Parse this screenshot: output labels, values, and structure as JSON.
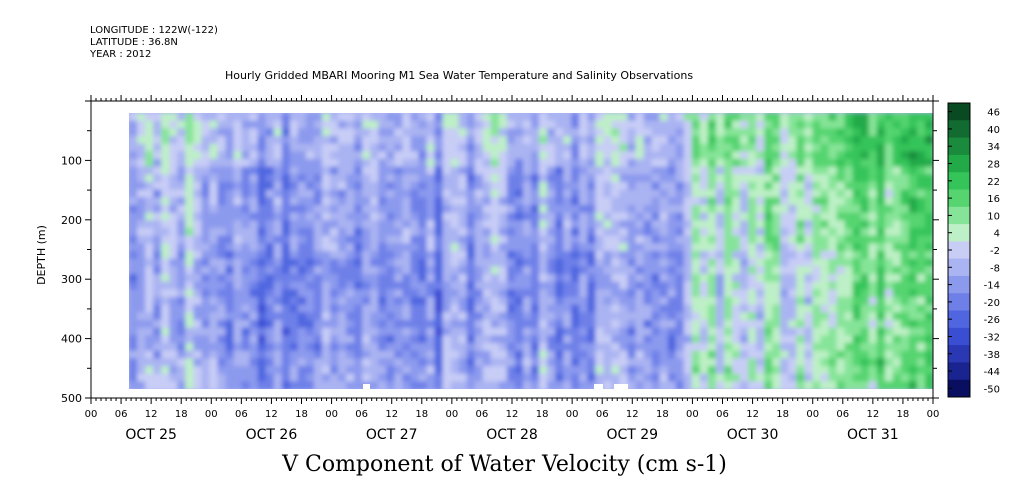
{
  "header": {
    "longitude": "LONGITUDE : 122W(-122)",
    "latitude": "LATITUDE : 36.8N",
    "year": "YEAR : 2012"
  },
  "chart_data": {
    "type": "heatmap",
    "title": "Hourly Gridded MBARI Mooring M1 Sea Water Temperature and Salinity Observations",
    "footer_label": "V Component of Water Velocity (cm s-1)",
    "ylabel": "DEPTH (m)",
    "ylim": [
      500,
      0
    ],
    "y_ticks": [
      "100",
      "200",
      "300",
      "400",
      "500"
    ],
    "x_hour_labels": [
      "00",
      "06",
      "12",
      "18",
      "00",
      "06",
      "12",
      "18",
      "00",
      "06",
      "12",
      "18",
      "00",
      "06",
      "12",
      "18",
      "00",
      "06",
      "12",
      "18",
      "00",
      "06",
      "12",
      "18",
      "00",
      "06",
      "12",
      "18",
      "00"
    ],
    "x_date_labels": [
      "OCT 25",
      "OCT 26",
      "OCT 27",
      "OCT 28",
      "OCT 29",
      "OCT 30",
      "OCT 31"
    ],
    "x_start": "OCT 25 00",
    "x_end": "OCT 32 00",
    "data_start": "OCT 25 06",
    "colorbar": {
      "labels": [
        "46",
        "40",
        "34",
        "28",
        "22",
        "16",
        "10",
        "4",
        "-2",
        "-8",
        "-14",
        "-20",
        "-26",
        "-32",
        "-38",
        "-44",
        "-50"
      ],
      "colors": [
        "#0a4a22",
        "#126b30",
        "#1a8a3c",
        "#22aa48",
        "#34c45a",
        "#55d470",
        "#86e498",
        "#bdf0c6",
        "#c8cdf6",
        "#aab4f2",
        "#8c9aee",
        "#6e80e8",
        "#5066e0",
        "#3a4ed4",
        "#2a38b4",
        "#1a2490",
        "#0a0e60"
      ],
      "lower_blue_colors": [
        "#6f85ee",
        "#5469e6",
        "#3f4ed8",
        "#2e3bb8",
        "#1d2894",
        "#0c1366"
      ]
    },
    "field_profile": {
      "days": [
        "OCT 25",
        "OCT 26",
        "OCT 27",
        "OCT 28",
        "OCT 29",
        "OCT 30",
        "OCT 31"
      ],
      "mean_value": [
        -6,
        -14,
        -14,
        -10,
        -12,
        4,
        16
      ]
    }
  }
}
